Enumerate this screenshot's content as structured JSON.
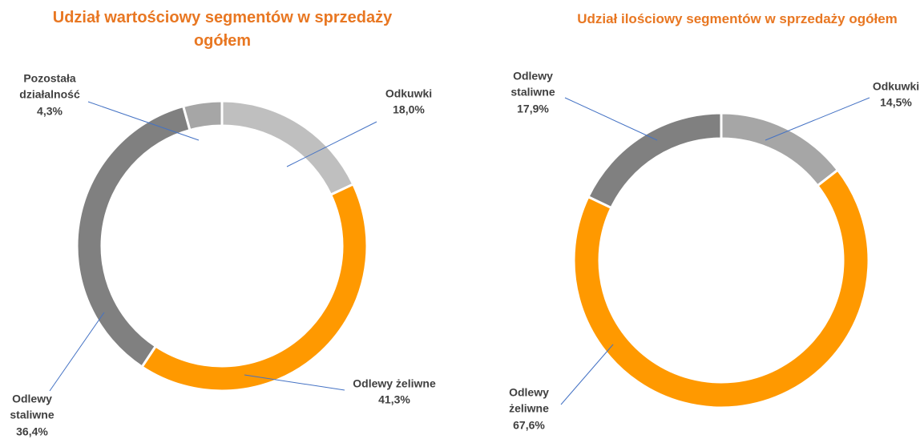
{
  "chart_data": [
    {
      "type": "donut",
      "title": "Udział wartościowy segmentów w sprzedaży ogółem",
      "categories": [
        "Odkuwki",
        "Odlewy żeliwne",
        "Odlewy staliwne",
        "Pozostała działalność"
      ],
      "values": [
        18.0,
        41.3,
        36.4,
        4.3
      ],
      "value_labels": [
        "18,0%",
        "41,3%",
        "36,4%",
        "4,3%"
      ],
      "colors": [
        "#bfbfbf",
        "#ff9900",
        "#808080",
        "#a6a6a6"
      ]
    },
    {
      "type": "donut",
      "title": "Udział ilościowy segmentów w sprzedaży ogółem",
      "categories": [
        "Odkuwki",
        "Odlewy żeliwne",
        "Odlewy staliwne"
      ],
      "values": [
        14.5,
        67.6,
        17.9
      ],
      "value_labels": [
        "14,5%",
        "67,6%",
        "17,9%"
      ],
      "colors": [
        "#a6a6a6",
        "#ff9900",
        "#808080"
      ]
    }
  ]
}
